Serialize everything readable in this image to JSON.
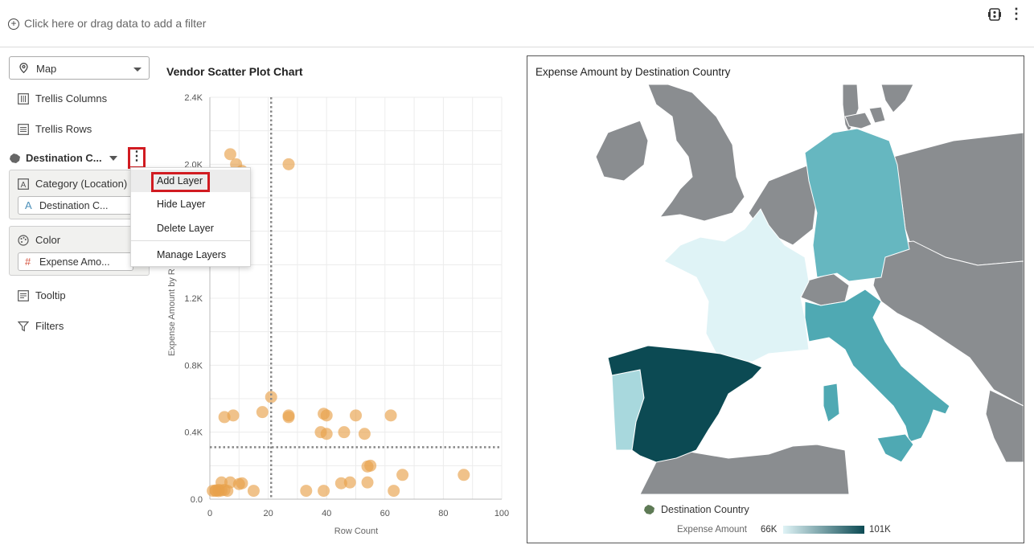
{
  "filter_bar": {
    "placeholder": "Click here or drag data to add a filter"
  },
  "grammar": {
    "viz_type": "Map",
    "trellis_columns": "Trellis Columns",
    "trellis_rows": "Trellis Rows",
    "layer_name": "Destination C...",
    "category_label": "Category (Location)",
    "category_value": "Destination C...",
    "color_label": "Color",
    "color_value": "Expense Amo...",
    "tooltip": "Tooltip",
    "filters": "Filters"
  },
  "context_menu": {
    "items": [
      "Add Layer",
      "Hide Layer",
      "Delete Layer",
      "Manage Layers"
    ]
  },
  "scatter": {
    "title": "Vendor Scatter Plot Chart",
    "xlabel": "Row Count",
    "ylabel": "Expense Amount by R",
    "x_ticks": [
      "0",
      "20",
      "40",
      "60",
      "80",
      "100"
    ],
    "y_ticks": [
      "0.0",
      "0.4K",
      "0.8K",
      "1.2K",
      "2.0K",
      "2.4K"
    ]
  },
  "chart_data": {
    "type": "scatter",
    "xlabel": "Row Count",
    "ylabel": "Expense Amount by R",
    "xlim": [
      0,
      100
    ],
    "ylim": [
      0,
      2400
    ],
    "reference_lines": {
      "x": 21,
      "y": 310
    },
    "point_color": "#e8a24c",
    "points": [
      [
        7,
        2060
      ],
      [
        9,
        2000
      ],
      [
        11,
        1960
      ],
      [
        27,
        2000
      ],
      [
        21,
        610
      ],
      [
        18,
        520
      ],
      [
        5,
        490
      ],
      [
        8,
        500
      ],
      [
        27,
        500
      ],
      [
        27,
        490
      ],
      [
        39,
        510
      ],
      [
        40,
        500
      ],
      [
        38,
        400
      ],
      [
        40,
        390
      ],
      [
        46,
        400
      ],
      [
        50,
        500
      ],
      [
        53,
        390
      ],
      [
        62,
        500
      ],
      [
        55,
        200
      ],
      [
        54,
        195
      ],
      [
        66,
        145
      ],
      [
        87,
        145
      ],
      [
        1,
        50
      ],
      [
        2,
        50
      ],
      [
        3,
        48
      ],
      [
        4,
        52
      ],
      [
        5,
        55
      ],
      [
        6,
        50
      ],
      [
        2,
        52
      ],
      [
        3,
        55
      ],
      [
        4,
        100
      ],
      [
        7,
        100
      ],
      [
        10,
        90
      ],
      [
        11,
        95
      ],
      [
        15,
        50
      ],
      [
        33,
        50
      ],
      [
        39,
        50
      ],
      [
        45,
        95
      ],
      [
        48,
        100
      ],
      [
        54,
        100
      ],
      [
        63,
        50
      ]
    ]
  },
  "map": {
    "title": "Expense Amount by Destination Country",
    "legend_layer": "Destination Country",
    "legend_measure": "Expense Amount",
    "legend_min": "66K",
    "legend_max": "101K",
    "colors": {
      "spain": "#0c4a53",
      "germany": "#66b7c0",
      "italy": "#4fa9b3",
      "france": "#dff3f6",
      "portugal": "#a8d8dd",
      "other": "#8a8d90",
      "sea": "#ffffff"
    }
  }
}
